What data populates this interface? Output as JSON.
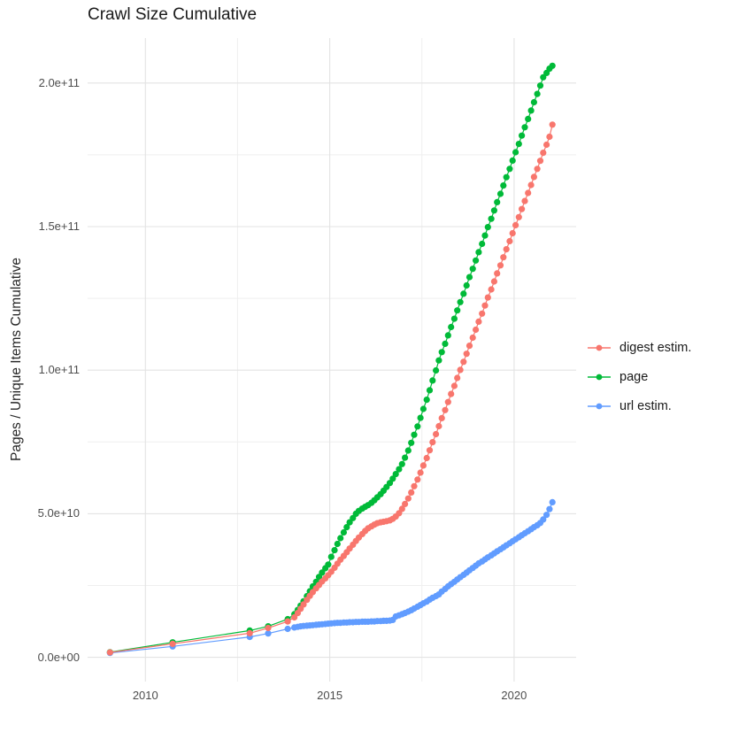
{
  "chart": {
    "title": "Crawl Size Cumulative",
    "ylabel": "Pages / Unique Items Cumulative",
    "legend": {
      "items": [
        {
          "label": "digest estim."
        },
        {
          "label": "page"
        },
        {
          "label": "url estim."
        }
      ]
    }
  },
  "chart_data": {
    "type": "scatter",
    "title": "Crawl Size Cumulative",
    "xlabel": "",
    "ylabel": "Pages / Unique Items Cumulative",
    "value_unit_note": "values in billions (1e9) of pages / unique items",
    "grid": true,
    "legend_position": "right",
    "xlim": [
      2008.44,
      2021.67
    ],
    "ylim_billions": [
      -8.5,
      216
    ],
    "xticks": {
      "major": [
        2010,
        2015,
        2020
      ],
      "minor": [
        2012.5,
        2017.5
      ],
      "labels": [
        "2010",
        "2015",
        "2020"
      ]
    },
    "yticks": {
      "major": [
        0,
        50,
        100,
        150,
        200
      ],
      "minor": [
        25,
        75,
        125,
        175
      ],
      "labels": [
        "0.0e+00",
        "5.0e+10",
        "1.0e+11",
        "1.5e+11",
        "2.0e+11"
      ]
    },
    "x": [
      2009.04,
      2010.74,
      2012.83,
      2013.33,
      2013.86,
      2014.04,
      2014.13,
      2014.21,
      2014.29,
      2014.38,
      2014.46,
      2014.54,
      2014.63,
      2014.71,
      2014.79,
      2014.88,
      2014.96,
      2015.04,
      2015.13,
      2015.21,
      2015.29,
      2015.38,
      2015.46,
      2015.54,
      2015.63,
      2015.71,
      2015.79,
      2015.88,
      2015.96,
      2016.04,
      2016.13,
      2016.21,
      2016.29,
      2016.38,
      2016.46,
      2016.54,
      2016.63,
      2016.71,
      2016.79,
      2016.88,
      2016.96,
      2017.04,
      2017.13,
      2017.21,
      2017.29,
      2017.38,
      2017.46,
      2017.54,
      2017.63,
      2017.71,
      2017.79,
      2017.88,
      2017.96,
      2018.04,
      2018.13,
      2018.21,
      2018.29,
      2018.38,
      2018.46,
      2018.54,
      2018.63,
      2018.71,
      2018.79,
      2018.88,
      2018.96,
      2019.04,
      2019.13,
      2019.21,
      2019.29,
      2019.38,
      2019.46,
      2019.54,
      2019.63,
      2019.71,
      2019.79,
      2019.88,
      2019.96,
      2020.04,
      2020.13,
      2020.21,
      2020.29,
      2020.38,
      2020.46,
      2020.54,
      2020.63,
      2020.71,
      2020.79,
      2020.88,
      2020.96,
      2021.04
    ],
    "series": [
      {
        "name": "digest estim.",
        "color": "#F8766D",
        "values": [
          1.7,
          4.7,
          8.4,
          10.2,
          12.5,
          13.9,
          15.4,
          16.9,
          18.4,
          20.0,
          21.4,
          22.7,
          24.0,
          25.2,
          26.4,
          27.5,
          28.6,
          29.8,
          31.2,
          32.6,
          34.0,
          35.3,
          36.6,
          37.9,
          39.2,
          40.5,
          41.7,
          42.9,
          44.0,
          44.9,
          45.6,
          46.2,
          46.7,
          47.0,
          47.2,
          47.4,
          47.7,
          48.2,
          49.0,
          50.2,
          51.7,
          53.4,
          55.3,
          57.4,
          59.6,
          61.9,
          64.3,
          66.8,
          69.4,
          72.1,
          74.9,
          77.7,
          80.5,
          83.3,
          86.1,
          88.9,
          91.7,
          94.5,
          97.3,
          100.1,
          102.9,
          105.7,
          108.5,
          111.3,
          114.1,
          116.9,
          119.7,
          122.5,
          125.3,
          128.1,
          130.9,
          133.7,
          136.5,
          139.3,
          142.1,
          144.9,
          147.7,
          150.5,
          153.3,
          156.1,
          158.9,
          161.7,
          164.5,
          167.3,
          170.1,
          172.9,
          175.7,
          178.5,
          181.3,
          185.5
        ]
      },
      {
        "name": "page",
        "color": "#00BA38",
        "values": [
          1.8,
          5.2,
          9.3,
          10.8,
          13.3,
          15.0,
          16.5,
          18.0,
          19.5,
          21.3,
          23.0,
          24.7,
          26.3,
          28.0,
          29.5,
          31.0,
          32.3,
          35.0,
          37.3,
          39.5,
          41.5,
          43.5,
          45.3,
          47.0,
          48.5,
          50.0,
          51.0,
          51.8,
          52.4,
          53.0,
          53.8,
          54.7,
          55.7,
          56.8,
          58.0,
          59.3,
          60.7,
          62.2,
          63.8,
          65.5,
          67.3,
          69.5,
          72.0,
          74.7,
          77.5,
          80.4,
          83.4,
          86.5,
          89.7,
          93.0,
          96.4,
          99.9,
          103.4,
          106.3,
          109.2,
          112.1,
          115.0,
          117.9,
          120.8,
          123.7,
          126.6,
          129.5,
          132.4,
          135.3,
          138.2,
          141.1,
          144.0,
          146.9,
          149.8,
          152.7,
          155.6,
          158.5,
          161.4,
          164.3,
          167.2,
          170.1,
          173.0,
          175.9,
          178.8,
          181.7,
          184.6,
          187.5,
          190.4,
          193.3,
          196.2,
          199.1,
          202.0,
          203.5,
          205.0,
          206.0
        ]
      },
      {
        "name": "url estim.",
        "color": "#619CFF",
        "values": [
          1.5,
          3.8,
          7.1,
          8.3,
          9.9,
          10.4,
          10.6,
          10.8,
          10.9,
          11.0,
          11.1,
          11.2,
          11.3,
          11.4,
          11.5,
          11.6,
          11.7,
          11.8,
          11.9,
          12.0,
          12.0,
          12.1,
          12.1,
          12.2,
          12.2,
          12.3,
          12.3,
          12.4,
          12.4,
          12.4,
          12.5,
          12.5,
          12.6,
          12.6,
          12.7,
          12.7,
          12.8,
          13.0,
          14.2,
          14.6,
          15.0,
          15.4,
          15.9,
          16.4,
          17.0,
          17.6,
          18.2,
          18.8,
          19.4,
          20.1,
          20.7,
          21.3,
          21.9,
          22.9,
          23.8,
          24.7,
          25.5,
          26.3,
          27.1,
          27.9,
          28.7,
          29.5,
          30.3,
          31.1,
          31.9,
          32.7,
          33.4,
          34.1,
          34.8,
          35.5,
          36.2,
          36.9,
          37.6,
          38.3,
          39.0,
          39.7,
          40.4,
          41.1,
          41.8,
          42.5,
          43.2,
          43.9,
          44.6,
          45.3,
          46.0,
          46.8,
          48.0,
          49.6,
          51.6,
          54.0
        ]
      }
    ]
  }
}
